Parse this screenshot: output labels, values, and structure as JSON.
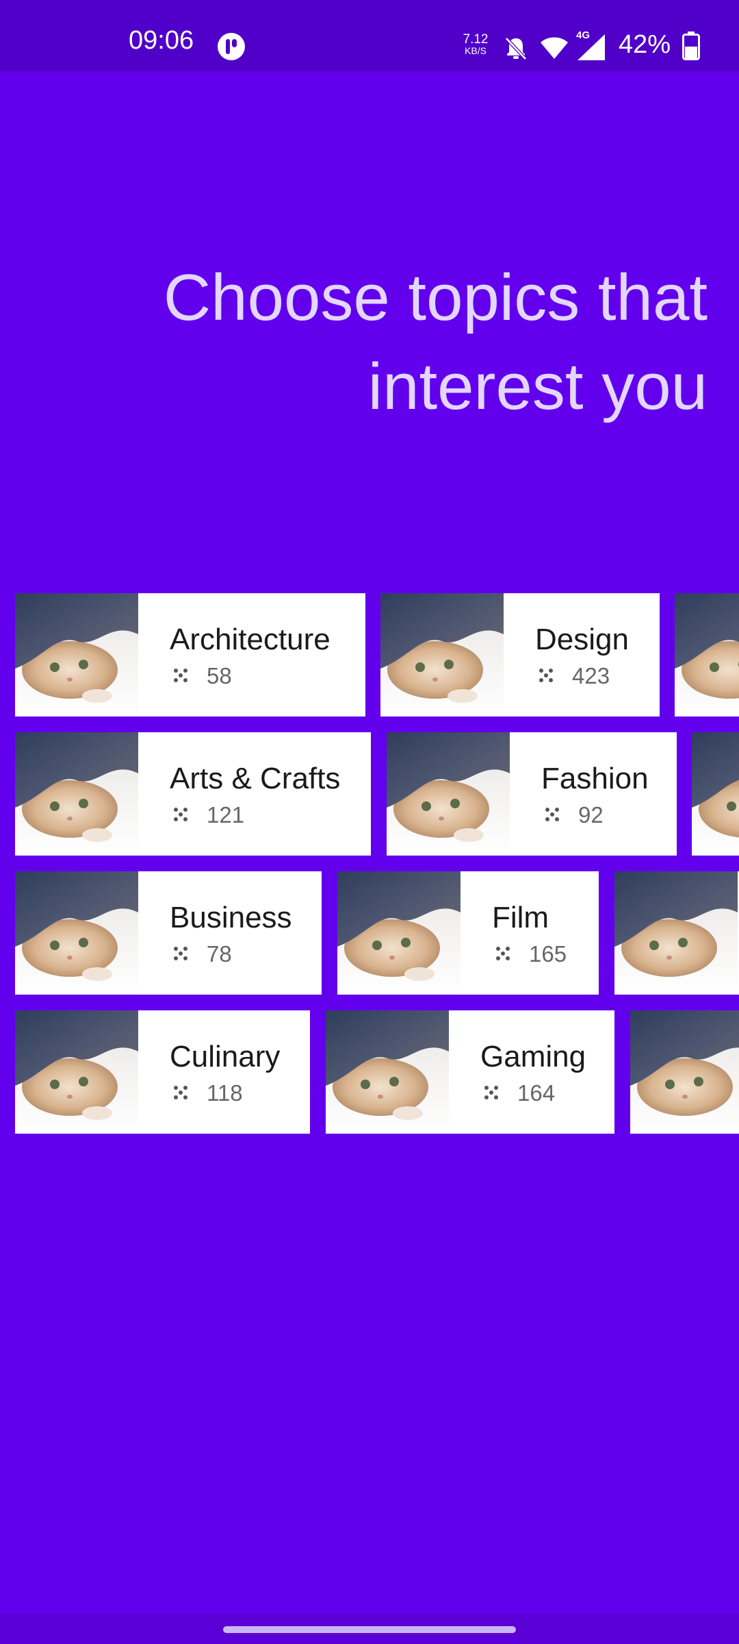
{
  "status_bar": {
    "time": "09:06",
    "net_speed_value": "7.12",
    "net_speed_unit": "KB/S",
    "network_type": "4G",
    "battery": "42%",
    "icons": [
      "app-notification-icon",
      "bell-off-icon",
      "wifi-icon",
      "signal-icon",
      "battery-icon"
    ]
  },
  "heading": {
    "line1": "Choose topics that",
    "line2": "interest you"
  },
  "topics": {
    "row1": [
      {
        "name": "Architecture",
        "count": "58"
      },
      {
        "name": "Design",
        "count": "423"
      }
    ],
    "row2": [
      {
        "name": "Arts & Crafts",
        "count": "121"
      },
      {
        "name": "Fashion",
        "count": "92"
      }
    ],
    "row3": [
      {
        "name": "Business",
        "count": "78"
      },
      {
        "name": "Film",
        "count": "165"
      }
    ],
    "row4": [
      {
        "name": "Culinary",
        "count": "118"
      },
      {
        "name": "Gaming",
        "count": "164"
      }
    ]
  },
  "colors": {
    "background": "#6200EE",
    "status_bar": "#5000C8",
    "heading_text": "#E3D6FF",
    "card": "#FFFFFF"
  }
}
